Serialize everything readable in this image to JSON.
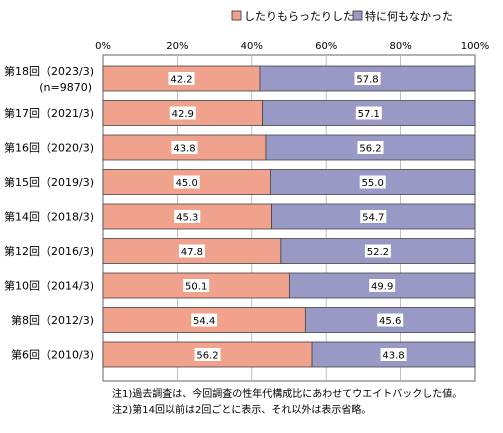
{
  "chart_data": {
    "type": "bar",
    "orientation": "horizontal",
    "stacked_percent": true,
    "legend": [
      "したりもらったりした",
      "特に何もなかった"
    ],
    "legend_placement": "top",
    "x_ticks": [
      "0%",
      "20%",
      "40%",
      "60%",
      "80%",
      "100%"
    ],
    "xlim": [
      0,
      100
    ],
    "grid": true,
    "categories": [
      {
        "label": "第18回（2023/3)",
        "sub": "(n=9870)"
      },
      {
        "label": "第17回（2021/3)"
      },
      {
        "label": "第16回（2020/3)"
      },
      {
        "label": "第15回（2019/3)"
      },
      {
        "label": "第14回（2018/3)"
      },
      {
        "label": "第12回（2016/3)"
      },
      {
        "label": "第10回（2014/3)"
      },
      {
        "label": "第8回（2012/3)"
      },
      {
        "label": "第6回（2010/3)"
      }
    ],
    "series": [
      {
        "name": "したりもらったりした",
        "color": "#f0a28c",
        "values": [
          42.2,
          42.9,
          43.8,
          45.0,
          45.3,
          47.8,
          50.1,
          54.4,
          56.2
        ]
      },
      {
        "name": "特に何もなかった",
        "color": "#9999c6",
        "values": [
          57.8,
          57.1,
          56.2,
          55.0,
          54.7,
          52.2,
          49.9,
          45.6,
          43.8
        ]
      }
    ],
    "value_labels": [
      [
        "42.2",
        "57.8"
      ],
      [
        "42.9",
        "57.1"
      ],
      [
        "43.8",
        "56.2"
      ],
      [
        "45.0",
        "55.0"
      ],
      [
        "45.3",
        "54.7"
      ],
      [
        "47.8",
        "52.2"
      ],
      [
        "50.1",
        "49.9"
      ],
      [
        "54.4",
        "45.6"
      ],
      [
        "56.2",
        "43.8"
      ]
    ]
  },
  "notes": [
    "注1)過去調査は、今回調査の性年代構成比にあわせてウエイトバックした値。",
    "注2)第14回以前は2回ごとに表示、それ以外は表示省略。"
  ]
}
